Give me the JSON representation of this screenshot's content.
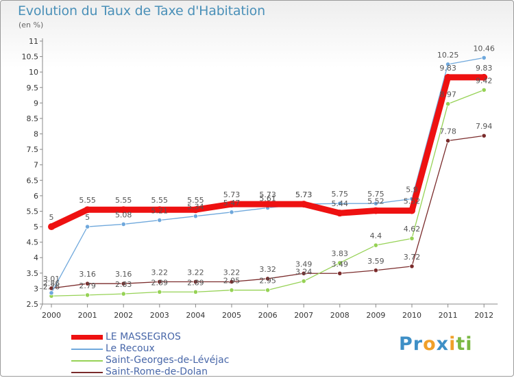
{
  "chart_data": {
    "type": "line",
    "title": "Evolution du Taux de Taxe d'Habitation",
    "subtitle": "(en %)",
    "x": [
      "2000",
      "2001",
      "2002",
      "2003",
      "2004",
      "2005",
      "2006",
      "2007",
      "2008",
      "2009",
      "2010",
      "2011",
      "2012"
    ],
    "ylim": [
      2.5,
      11
    ],
    "yticks": [
      2.5,
      3,
      3.5,
      4,
      4.5,
      5,
      5.5,
      6,
      6.5,
      7,
      7.5,
      8,
      8.5,
      9,
      9.5,
      10,
      10.5,
      11
    ],
    "grid": false,
    "legend_position": "bottom-left",
    "series": [
      {
        "name": "Saint-Rome-de-Dolan",
        "color": "#7a2b2b",
        "values": [
          3.01,
          3.16,
          3.16,
          3.22,
          3.22,
          3.22,
          3.32,
          3.49,
          3.49,
          3.59,
          3.72,
          7.78,
          7.94
        ]
      },
      {
        "name": "Saint-Georges-de-Lévéjac",
        "color": "#96d255",
        "values": [
          2.76,
          2.79,
          2.83,
          2.89,
          2.89,
          2.95,
          2.95,
          3.24,
          3.83,
          4.4,
          4.62,
          8.97,
          9.42
        ]
      },
      {
        "name": "Le Recoux",
        "color": "#6fa8dc",
        "values": [
          2.86,
          5,
          5.08,
          5.21,
          5.34,
          5.47,
          5.61,
          5.73,
          5.75,
          5.75,
          5.9,
          10.25,
          10.46
        ]
      },
      {
        "name": "LE MASSEGROS",
        "color": "#ee1111",
        "values": [
          5,
          5.55,
          5.55,
          5.55,
          5.55,
          5.73,
          5.73,
          5.73,
          5.44,
          5.52,
          5.52,
          9.83,
          9.83
        ]
      }
    ]
  },
  "legend": [
    {
      "label": "LE MASSEGROS",
      "color": "#ee1111"
    },
    {
      "label": "Le Recoux",
      "color": "#6fa8dc"
    },
    {
      "label": "Saint-Georges-de-Lévéjac",
      "color": "#96d255"
    },
    {
      "label": "Saint-Rome-de-Dolan",
      "color": "#7a2b2b"
    }
  ],
  "logo": {
    "p1": "Pr",
    "o": "o",
    "x": "x",
    "i1": "i",
    "t": "t",
    "i2": "i"
  }
}
